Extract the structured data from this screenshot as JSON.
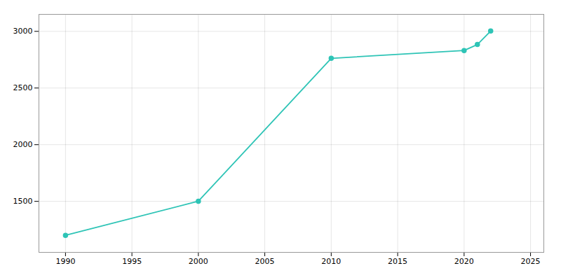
{
  "chart_data": {
    "type": "line",
    "x": [
      1990,
      2000,
      2010,
      2020,
      2021,
      2022
    ],
    "values": [
      1200,
      1501,
      2762,
      2831,
      2884,
      3003
    ],
    "color": "#2ec4b6",
    "marker": "circle",
    "xlim": [
      1988,
      2026
    ],
    "ylim": [
      1050,
      3150
    ],
    "xticks": [
      1990,
      1995,
      2000,
      2005,
      2010,
      2015,
      2020,
      2025
    ],
    "yticks": [
      1500,
      2000,
      2500,
      3000
    ],
    "grid": true
  }
}
